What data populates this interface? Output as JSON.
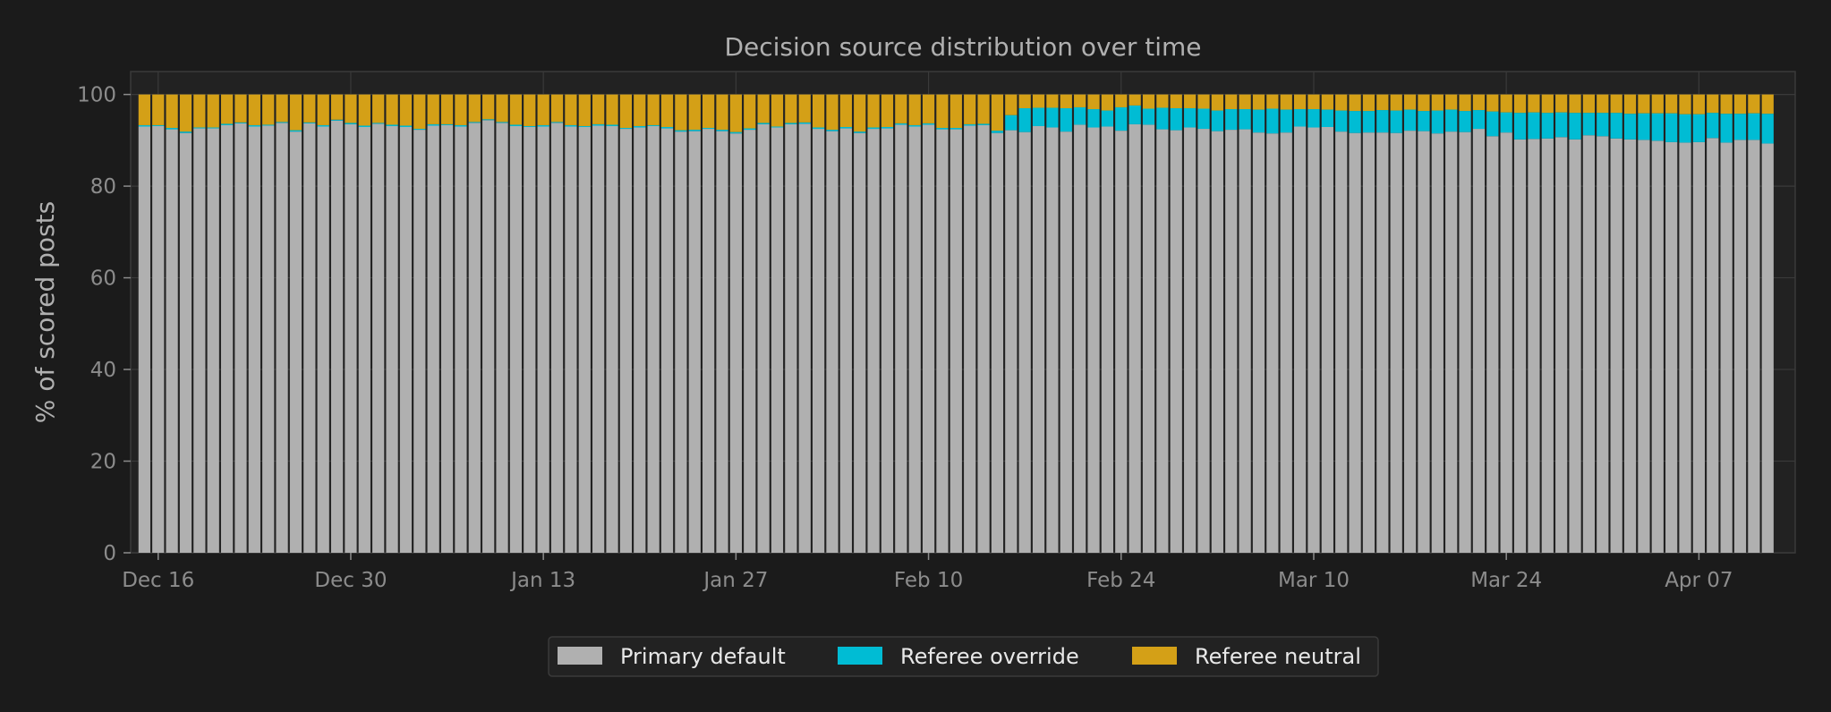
{
  "chart_data": {
    "type": "bar",
    "stacked": true,
    "title": "Decision source distribution over time",
    "xlabel": "",
    "ylabel": "% of scored posts",
    "ylim": [
      0,
      105
    ],
    "yticks": [
      0,
      20,
      40,
      60,
      80,
      100
    ],
    "grid": true,
    "legend_position": "bottom-center",
    "x_start": "2024-12-14",
    "x_end": "2025-04-14",
    "xtick_labels": [
      {
        "date": "2024-12-16",
        "label": "Dec 16"
      },
      {
        "date": "2024-12-30",
        "label": "Dec 30"
      },
      {
        "date": "2025-01-13",
        "label": "Jan 13"
      },
      {
        "date": "2025-01-27",
        "label": "Jan 27"
      },
      {
        "date": "2025-02-10",
        "label": "Feb 10"
      },
      {
        "date": "2025-02-24",
        "label": "Feb 24"
      },
      {
        "date": "2025-03-10",
        "label": "Mar 10"
      },
      {
        "date": "2025-03-24",
        "label": "Mar 24"
      },
      {
        "date": "2025-04-07",
        "label": "Apr 07"
      }
    ],
    "series": [
      {
        "name": "Primary default",
        "color": "#b0b0b0",
        "values": [
          93.0,
          93.1,
          92.4,
          91.6,
          92.6,
          92.6,
          93.3,
          93.7,
          93.0,
          93.2,
          93.8,
          91.9,
          93.7,
          93.0,
          94.3,
          93.5,
          92.9,
          93.6,
          93.1,
          92.9,
          92.3,
          93.2,
          93.3,
          93.0,
          93.8,
          94.4,
          93.8,
          93.1,
          92.9,
          93.0,
          93.8,
          93.0,
          92.9,
          93.2,
          93.1,
          92.5,
          92.8,
          93.1,
          92.6,
          91.9,
          92.0,
          92.5,
          92.0,
          91.5,
          92.3,
          93.5,
          92.8,
          93.5,
          93.6,
          92.5,
          92.0,
          92.6,
          91.6,
          92.5,
          92.6,
          93.4,
          93.0,
          93.4,
          92.4,
          92.4,
          93.2,
          93.3,
          91.6,
          92.2,
          91.8,
          93.1,
          92.8,
          91.9,
          93.4,
          92.8,
          93.0,
          92.1,
          93.5,
          93.4,
          92.4,
          92.2,
          92.8,
          92.5,
          92.0,
          92.3,
          92.4,
          91.7,
          91.5,
          91.7,
          93.0,
          92.8,
          92.9,
          91.9,
          91.6,
          91.7,
          91.7,
          91.6,
          92.1,
          92.0,
          91.5,
          91.9,
          91.8,
          92.5,
          90.9,
          91.7,
          90.2,
          90.3,
          90.4,
          90.7,
          90.2,
          91.1,
          90.9,
          90.4,
          90.2,
          90.1,
          89.9,
          89.6,
          89.5,
          89.6,
          90.5,
          89.5,
          90.1,
          90.1,
          89.3
        ]
      },
      {
        "name": "Referee override",
        "color": "#00bcd4",
        "values": [
          0.3,
          0.2,
          0.3,
          0.3,
          0.2,
          0.2,
          0.3,
          0.2,
          0.3,
          0.2,
          0.2,
          0.3,
          0.2,
          0.3,
          0.2,
          0.3,
          0.3,
          0.2,
          0.3,
          0.3,
          0.2,
          0.3,
          0.2,
          0.3,
          0.2,
          0.2,
          0.2,
          0.3,
          0.2,
          0.3,
          0.2,
          0.3,
          0.2,
          0.3,
          0.3,
          0.2,
          0.3,
          0.2,
          0.3,
          0.3,
          0.3,
          0.2,
          0.3,
          0.3,
          0.3,
          0.3,
          0.2,
          0.3,
          0.3,
          0.3,
          0.3,
          0.3,
          0.3,
          0.3,
          0.3,
          0.3,
          0.3,
          0.3,
          0.3,
          0.3,
          0.3,
          0.3,
          0.5,
          3.3,
          5.2,
          4.0,
          4.3,
          5.1,
          3.8,
          4.0,
          3.5,
          5.1,
          4.1,
          3.5,
          4.7,
          4.8,
          4.2,
          4.4,
          4.5,
          4.5,
          4.4,
          5.0,
          5.4,
          5.0,
          3.8,
          4.0,
          3.8,
          4.6,
          4.8,
          4.7,
          4.9,
          4.9,
          4.6,
          4.4,
          5.0,
          4.8,
          4.6,
          4.1,
          5.4,
          4.4,
          5.8,
          5.8,
          5.6,
          5.4,
          5.8,
          4.9,
          5.1,
          5.6,
          5.6,
          5.8,
          6.0,
          6.3,
          6.2,
          6.1,
          5.5,
          6.3,
          5.7,
          5.8,
          6.5
        ]
      },
      {
        "name": "Referee neutral",
        "color": "#d4a017",
        "values": [
          6.7,
          6.7,
          7.3,
          8.1,
          7.2,
          7.2,
          6.4,
          6.1,
          6.7,
          6.6,
          6.0,
          7.8,
          6.1,
          6.7,
          5.5,
          6.2,
          6.8,
          6.2,
          6.6,
          6.8,
          7.5,
          6.5,
          6.5,
          6.7,
          6.0,
          5.4,
          6.0,
          6.6,
          6.9,
          6.7,
          6.0,
          6.7,
          6.9,
          6.5,
          6.6,
          7.3,
          6.9,
          6.7,
          7.1,
          7.8,
          7.7,
          7.3,
          7.7,
          8.2,
          7.4,
          6.2,
          7.0,
          6.2,
          6.1,
          7.2,
          7.7,
          7.1,
          8.1,
          7.2,
          7.1,
          6.3,
          6.7,
          6.3,
          7.3,
          7.3,
          6.5,
          6.4,
          7.9,
          4.5,
          3.0,
          2.9,
          2.9,
          3.0,
          2.8,
          3.2,
          3.5,
          2.8,
          2.4,
          3.1,
          2.9,
          3.0,
          3.0,
          3.1,
          3.5,
          3.2,
          3.2,
          3.3,
          3.1,
          3.3,
          3.2,
          3.2,
          3.3,
          3.5,
          3.6,
          3.6,
          3.4,
          3.5,
          3.3,
          3.6,
          3.5,
          3.3,
          3.6,
          3.4,
          3.7,
          3.9,
          4.0,
          3.9,
          4.0,
          3.9,
          4.0,
          4.0,
          4.0,
          4.0,
          4.2,
          4.1,
          4.1,
          4.1,
          4.3,
          4.3,
          4.0,
          4.2,
          4.2,
          4.1,
          4.2
        ]
      }
    ]
  }
}
